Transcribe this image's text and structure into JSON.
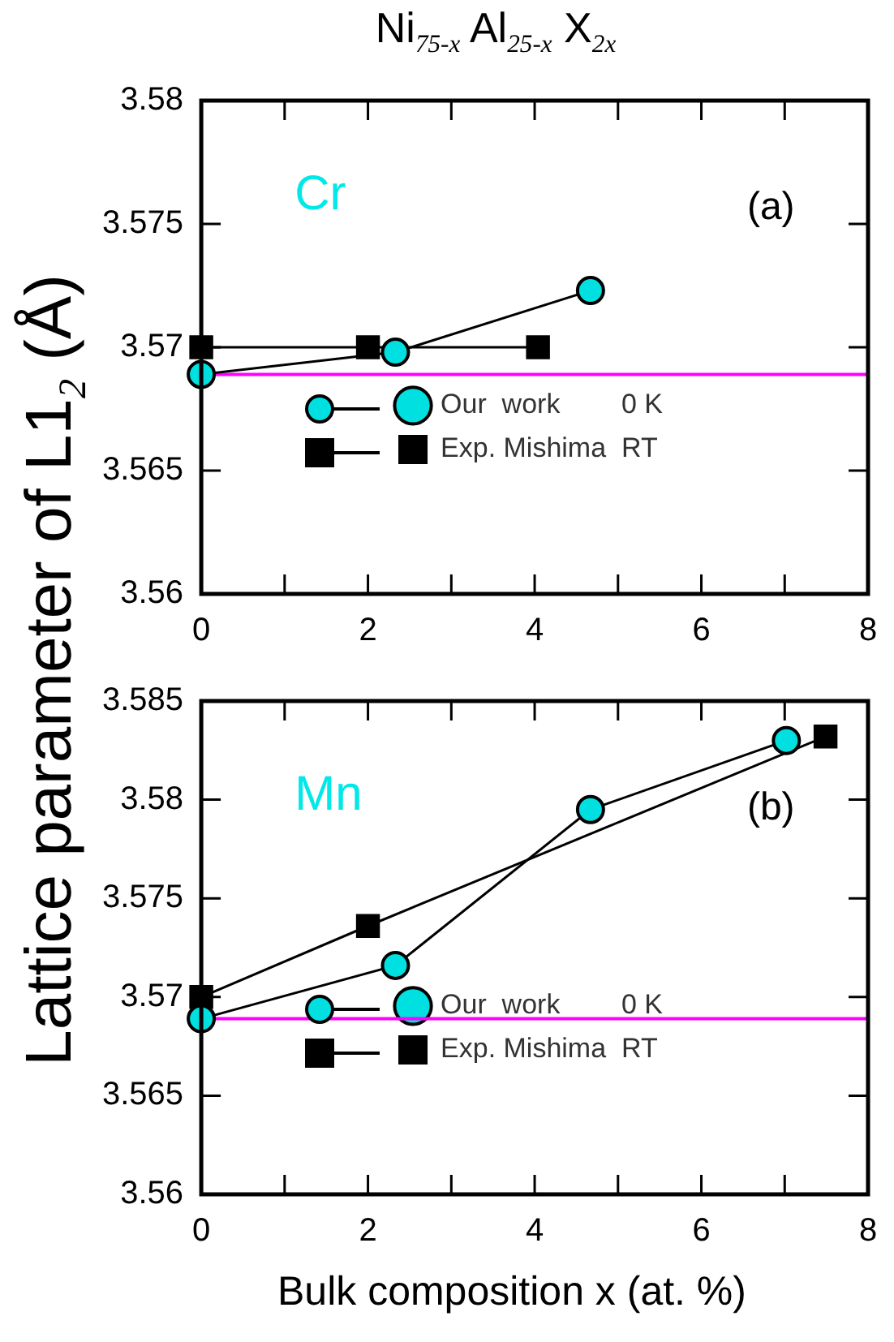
{
  "chart_data": [
    {
      "type": "line",
      "title": "Ni$_{75-x}$ Al$_{25-x}$ X$_{2x}$",
      "ylabel": "Lattice parameter of L1$_{2}$ (Å)",
      "xlim": [
        0,
        8
      ],
      "xticks": [
        0,
        {
          "value": 1,
          "label": null
        },
        2,
        {
          "value": 3,
          "label": null
        },
        4,
        {
          "value": 5,
          "label": null
        },
        6,
        {
          "value": 7,
          "label": null
        },
        8
      ],
      "ylim": [
        3.56,
        3.58
      ],
      "yticks": [
        3.56,
        3.565,
        3.57,
        3.575,
        3.58
      ],
      "series": [
        {
          "name": "Our  work        0 K",
          "color": "#00e0e0",
          "marker": "circle",
          "x": [
            0,
            2.33,
            4.67
          ],
          "values": [
            3.5689,
            3.5698,
            3.5723
          ]
        },
        {
          "name": "Exp. Mishima  RT",
          "color": "#000000",
          "marker": "square",
          "x": [
            0,
            2.0,
            4.04
          ],
          "values": [
            3.57,
            3.57,
            3.57
          ]
        }
      ],
      "ref_lines": [
        {
          "axis": "y",
          "value": 3.5689,
          "color": "#ff00ff"
        }
      ],
      "annotations": [
        "Cr",
        "(a)"
      ],
      "legend": "bottom",
      "grid": false
    },
    {
      "type": "line",
      "xlabel": "Bulk composition x (at. %)",
      "xlim": [
        0,
        8
      ],
      "xticks": [
        0,
        {
          "value": 1,
          "label": null
        },
        2,
        {
          "value": 3,
          "label": null
        },
        4,
        {
          "value": 5,
          "label": null
        },
        6,
        {
          "value": 7,
          "label": null
        },
        8
      ],
      "ylim": [
        3.56,
        3.585
      ],
      "yticks": [
        3.56,
        3.565,
        3.57,
        3.575,
        3.58,
        3.585
      ],
      "series": [
        {
          "name": "Our  work        0 K",
          "color": "#00e0e0",
          "marker": "circle",
          "x": [
            0,
            2.33,
            4.67,
            7.02
          ],
          "values": [
            3.5689,
            3.5716,
            3.5795,
            3.583
          ]
        },
        {
          "name": "Exp. Mishima  RT",
          "color": "#000000",
          "marker": "square",
          "x": [
            0,
            2.0,
            7.49
          ],
          "values": [
            3.57,
            3.5736,
            3.5832
          ]
        }
      ],
      "ref_lines": [
        {
          "axis": "y",
          "value": 3.5689,
          "color": "#ff00ff"
        }
      ],
      "annotations": [
        "Mn",
        "(b)"
      ],
      "legend": "bottom",
      "grid": false
    }
  ]
}
